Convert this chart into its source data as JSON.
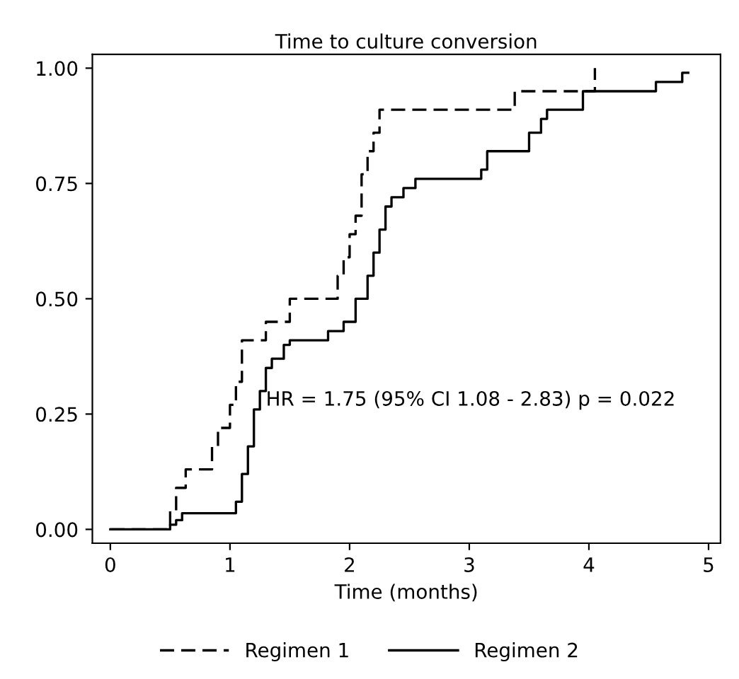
{
  "chart_data": {
    "type": "step",
    "title": "Time to culture conversion",
    "xlabel": "Time (months)",
    "xlim": [
      -0.15,
      5.1
    ],
    "ylim": [
      -0.03,
      1.03
    ],
    "xticks": [
      0,
      1,
      2,
      3,
      4,
      5
    ],
    "yticks": [
      {
        "value": 0,
        "label": "0.00"
      },
      {
        "value": 0.25,
        "label": "0.25"
      },
      {
        "value": 0.5,
        "label": "0.50"
      },
      {
        "value": 0.75,
        "label": "0.75"
      },
      {
        "value": 1,
        "label": "1.00"
      }
    ],
    "series": [
      {
        "name": "Regimen 1",
        "color": "#000000",
        "line_style": "dashed",
        "x": [
          0,
          0.5,
          0.55,
          0.63,
          0.72,
          0.85,
          0.9,
          1.0,
          1.05,
          1.1,
          1.3,
          1.5,
          1.9,
          1.95,
          2.0,
          2.05,
          2.1,
          2.15,
          2.2,
          2.25,
          3.38,
          4.05
        ],
        "values": [
          0,
          0.04,
          0.09,
          0.13,
          0.13,
          0.18,
          0.22,
          0.27,
          0.32,
          0.41,
          0.45,
          0.5,
          0.55,
          0.59,
          0.64,
          0.68,
          0.77,
          0.82,
          0.86,
          0.91,
          0.95,
          1.0
        ]
      },
      {
        "name": "Regimen 2",
        "color": "#000000",
        "line_style": "solid",
        "x": [
          0,
          0.5,
          0.55,
          0.6,
          1.05,
          1.1,
          1.15,
          1.2,
          1.25,
          1.3,
          1.35,
          1.45,
          1.5,
          1.82,
          1.95,
          2.05,
          2.15,
          2.2,
          2.25,
          2.3,
          2.35,
          2.45,
          2.55,
          3.1,
          3.15,
          3.25,
          3.5,
          3.6,
          3.65,
          3.95,
          4.56,
          4.78,
          4.83
        ],
        "values": [
          0,
          0.01,
          0.02,
          0.035,
          0.06,
          0.12,
          0.18,
          0.26,
          0.3,
          0.35,
          0.37,
          0.4,
          0.41,
          0.43,
          0.45,
          0.5,
          0.55,
          0.6,
          0.65,
          0.7,
          0.72,
          0.74,
          0.76,
          0.78,
          0.82,
          0.82,
          0.86,
          0.89,
          0.91,
          0.95,
          0.97,
          0.99,
          0.99
        ]
      }
    ],
    "annotations": [
      {
        "text": "HR = 1.75 (95% CI 1.08 - 2.83) p = 0.022",
        "x": 1.3,
        "y": 0.28
      }
    ],
    "legend": "bottom",
    "grid": false
  }
}
